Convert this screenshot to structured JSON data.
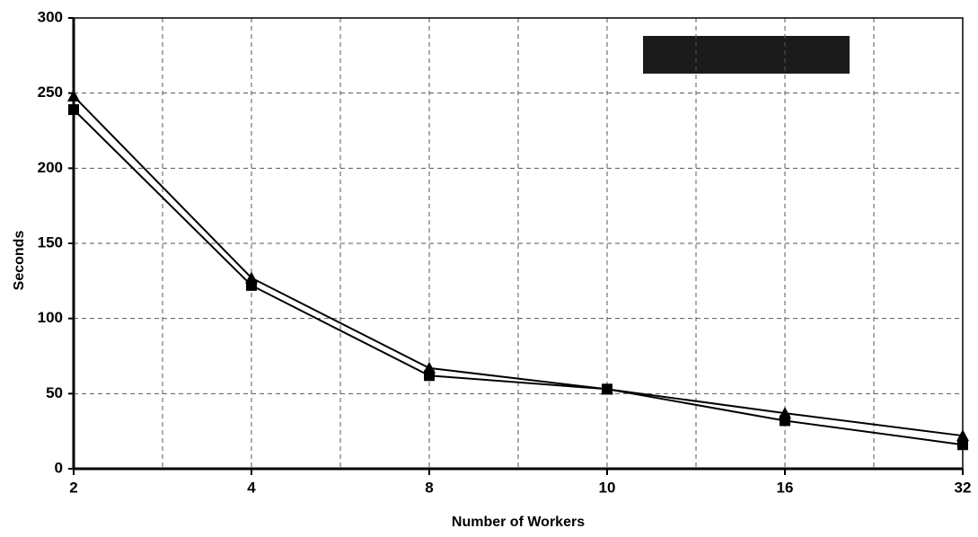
{
  "chart_data": {
    "type": "line",
    "x_label": "Number of Workers",
    "y_label": "Seconds",
    "categories": [
      "2",
      "4",
      "8",
      "10",
      "16",
      "32"
    ],
    "series": [
      {
        "color": "#000000",
        "marker": "triangle",
        "values": [
          248,
          127,
          67,
          53,
          37,
          22
        ]
      },
      {
        "color": "#000000",
        "marker": "square",
        "values": [
          239,
          122,
          62,
          53,
          32,
          16
        ]
      }
    ],
    "ylim": [
      0,
      300
    ],
    "yticks": [
      0,
      50,
      100,
      150,
      200,
      250,
      300
    ],
    "grid": true
  }
}
